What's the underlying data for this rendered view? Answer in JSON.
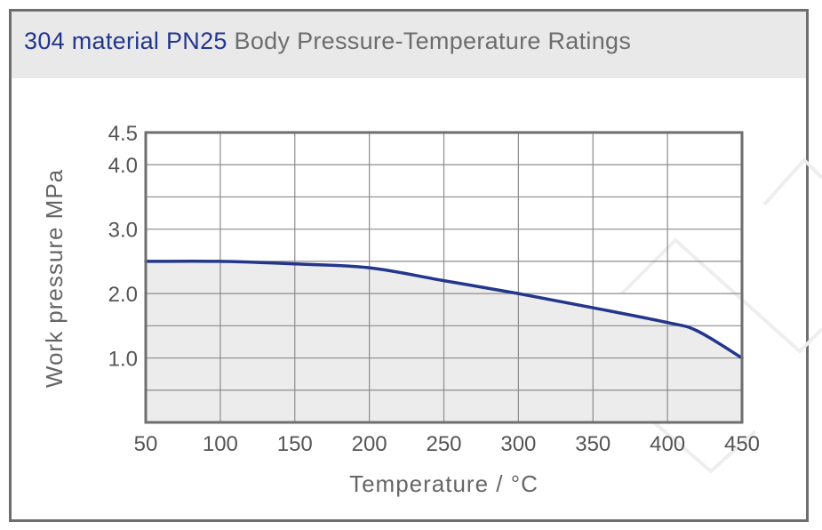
{
  "header": {
    "title_accent": "304 material  PN25",
    "title_rest": " Body Pressure-Temperature Ratings"
  },
  "colors": {
    "accent": "#24368c",
    "line": "#24368c",
    "fill": "#ececec",
    "grid": "#8c8c8c",
    "frame": "#6e6e6e",
    "text": "#555555"
  },
  "chart_data": {
    "type": "area",
    "title": "304 material  PN25 Body Pressure-Temperature Ratings",
    "xlabel": "Temperature / °C",
    "ylabel": "Work pressure MPa",
    "xlim": [
      50,
      450
    ],
    "ylim": [
      0,
      4.5
    ],
    "x_ticks": [
      "50",
      "100",
      "150",
      "200",
      "250",
      "300",
      "350",
      "400",
      "450"
    ],
    "y_ticks": [
      "1.0",
      "2.0",
      "3.0",
      "4.0",
      "4.5"
    ],
    "grid": true,
    "series": [
      {
        "x": [
          50,
          100,
          150,
          200,
          250,
          300,
          350,
          400,
          420,
          450
        ],
        "y": [
          2.5,
          2.5,
          2.46,
          2.4,
          2.2,
          2.0,
          1.78,
          1.55,
          1.42,
          1.0
        ]
      }
    ]
  }
}
